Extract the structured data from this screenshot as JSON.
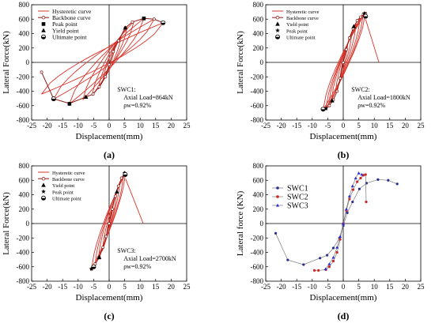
{
  "panels": [
    {
      "id": "a",
      "caption": "(a)",
      "legend": [
        "Hysteretic curve",
        "Backbone curve",
        "Peak point",
        "Yield point",
        "Ultimate point"
      ],
      "annotation": [
        "SWC1:",
        "Axial Load=864kN",
        "ρw=0.92%"
      ]
    },
    {
      "id": "b",
      "caption": "(b)",
      "legend": [
        "Hysteretic curve",
        "Backbone curve",
        "Yield point",
        "Peak point",
        "Ultimate point"
      ],
      "annotation": [
        "SWC2:",
        "Axial Load=1800kN",
        "ρw=0.92%"
      ]
    },
    {
      "id": "c",
      "caption": "(c)",
      "legend": [
        "Hysteretic curve",
        "Backbone curve",
        "Yield point",
        "Peak point",
        "Ultimate point"
      ],
      "annotation": [
        "SWC3:",
        "Axial Load=2700kN",
        "ρw=0.92%"
      ]
    },
    {
      "id": "d",
      "caption": "(d)",
      "legend": [
        "SWC1",
        "SWC2",
        "SWC3"
      ],
      "annotation": []
    }
  ],
  "colors": {
    "hysteretic": "#d9342b",
    "backbone": "#8a1a14",
    "swc1": "#2a2f8f",
    "swc2": "#d02020",
    "swc3": "#2b2bd6",
    "axis": "#000000",
    "panel_d_line": "#7a7a7a"
  },
  "chart_data": [
    {
      "type": "line",
      "panel": "a",
      "xlabel": "Displacement(mm)",
      "ylabel": "Lateral Force(kN)",
      "xlim": [
        -25,
        25
      ],
      "ylim": [
        -800,
        800
      ],
      "xticks": [
        -25,
        -20,
        -15,
        -10,
        -5,
        0,
        5,
        10,
        15,
        20,
        25
      ],
      "yticks": [
        -800,
        -600,
        -400,
        -200,
        0,
        200,
        400,
        600,
        800
      ],
      "series": [
        {
          "name": "Backbone curve",
          "x": [
            -21.8,
            -17.9,
            -12.8,
            -7.5,
            -5.2,
            -3.2,
            -1.2,
            0.0,
            1.3,
            3.0,
            5.2,
            7.5,
            11.2,
            14.5,
            17.4
          ],
          "y": [
            -135,
            -505,
            -570,
            -480,
            -440,
            -340,
            -200,
            -30,
            150,
            300,
            480,
            560,
            610,
            600,
            550
          ]
        }
      ],
      "hysteretic_loops": [
        {
          "xmin": -2.0,
          "xmax": 2.0,
          "fmin": -260,
          "fmax": 250
        },
        {
          "xmin": -3.5,
          "xmax": 3.8,
          "fmin": -370,
          "fmax": 360
        },
        {
          "xmin": -5.5,
          "xmax": 5.8,
          "fmin": -460,
          "fmax": 490
        },
        {
          "xmin": -8.5,
          "xmax": 8.0,
          "fmin": -520,
          "fmax": 570
        },
        {
          "xmin": -12.8,
          "xmax": 11.2,
          "fmin": -575,
          "fmax": 610
        },
        {
          "xmin": -17.9,
          "xmax": 14.5,
          "fmin": -510,
          "fmax": 600
        },
        {
          "xmin": -21.8,
          "xmax": 17.4,
          "fmin": -440,
          "fmax": 550
        }
      ],
      "peak_points": [
        {
          "x": 11.2,
          "y": 610
        },
        {
          "x": -12.8,
          "y": -575
        }
      ],
      "yield_points": [
        {
          "x": 5.2,
          "y": 480
        },
        {
          "x": -7.5,
          "y": -480
        }
      ],
      "ultimate_points": [
        {
          "x": 17.4,
          "y": 550
        },
        {
          "x": -17.9,
          "y": -505
        }
      ]
    },
    {
      "type": "line",
      "panel": "b",
      "xlabel": "Displacement(mm)",
      "ylabel": "Lateral Force(kN)",
      "xlim": [
        -25,
        25
      ],
      "ylim": [
        -800,
        800
      ],
      "xticks": [
        -25,
        -20,
        -15,
        -10,
        -5,
        0,
        5,
        10,
        15,
        20,
        25
      ],
      "yticks": [
        -800,
        -600,
        -400,
        -200,
        0,
        200,
        400,
        600,
        800
      ],
      "series": [
        {
          "name": "Backbone curve",
          "x": [
            -5.6,
            -4.5,
            -3.2,
            -2.0,
            -1.0,
            0.0,
            1.0,
            2.0,
            3.2,
            4.5,
            5.6,
            6.5,
            7.2
          ],
          "y": [
            -640,
            -600,
            -520,
            -400,
            -220,
            0,
            180,
            340,
            470,
            580,
            630,
            670,
            680
          ]
        }
      ],
      "hysteretic_loops": [
        {
          "xmin": -1.2,
          "xmax": 1.4,
          "fmin": -280,
          "fmax": 260
        },
        {
          "xmin": -2.5,
          "xmax": 2.8,
          "fmin": -420,
          "fmax": 420
        },
        {
          "xmin": -3.8,
          "xmax": 4.2,
          "fmin": -530,
          "fmax": 540
        },
        {
          "xmin": -4.8,
          "xmax": 5.5,
          "fmin": -600,
          "fmax": 620
        },
        {
          "xmin": -5.6,
          "xmax": 6.5,
          "fmin": -640,
          "fmax": 670
        },
        {
          "xmin": -6.5,
          "xmax": 7.2,
          "fmin": -655,
          "fmax": 690
        }
      ],
      "failure_branch": {
        "x": [
          7.2,
          11.5
        ],
        "y": [
          600,
          0
        ]
      },
      "yield_points": [
        {
          "x": 3.4,
          "y": 500
        },
        {
          "x": -3.6,
          "y": -530
        }
      ],
      "peak_points": [
        {
          "x": 6.8,
          "y": 680
        },
        {
          "x": -5.6,
          "y": -640
        }
      ],
      "ultimate_points": [
        {
          "x": 7.2,
          "y": 640
        },
        {
          "x": -6.5,
          "y": -650
        }
      ]
    },
    {
      "type": "line",
      "panel": "c",
      "xlabel": "Displacement(mm)",
      "ylabel": "Lateral Force(kN)",
      "xlim": [
        -25,
        25
      ],
      "ylim": [
        -800,
        800
      ],
      "xticks": [
        -25,
        -20,
        -15,
        -10,
        -5,
        0,
        5,
        10,
        15,
        20,
        25
      ],
      "yticks": [
        -800,
        -600,
        -400,
        -200,
        0,
        200,
        400,
        600,
        800
      ],
      "series": [
        {
          "name": "Backbone curve",
          "x": [
            -5.7,
            -4.5,
            -3.2,
            -2.0,
            -1.0,
            0.0,
            1.0,
            2.0,
            3.0,
            4.0,
            5.0
          ],
          "y": [
            -630,
            -560,
            -470,
            -330,
            -180,
            0,
            200,
            380,
            520,
            630,
            700
          ]
        }
      ],
      "hysteretic_loops": [
        {
          "xmin": -1.0,
          "xmax": 1.2,
          "fmin": -220,
          "fmax": 240
        },
        {
          "xmin": -2.2,
          "xmax": 2.4,
          "fmin": -380,
          "fmax": 430
        },
        {
          "xmin": -3.5,
          "xmax": 3.5,
          "fmin": -500,
          "fmax": 580
        },
        {
          "xmin": -4.6,
          "xmax": 4.6,
          "fmin": -580,
          "fmax": 660
        },
        {
          "xmin": -5.7,
          "xmax": 5.3,
          "fmin": -640,
          "fmax": 700
        }
      ],
      "failure_branch": {
        "x": [
          5.3,
          11.0
        ],
        "y": [
          620,
          0
        ]
      },
      "yield_points": [
        {
          "x": 2.5,
          "y": 440
        },
        {
          "x": -3.2,
          "y": -470
        }
      ],
      "peak_points": [
        {
          "x": 5.0,
          "y": 700
        },
        {
          "x": -5.7,
          "y": -630
        }
      ],
      "ultimate_points": [
        {
          "x": 5.2,
          "y": 680
        },
        {
          "x": -5.0,
          "y": -600
        }
      ]
    },
    {
      "type": "line",
      "panel": "d",
      "xlabel": "Displacement(mm)",
      "ylabel": "Lateral force (KN)",
      "xlim": [
        -25,
        25
      ],
      "ylim": [
        -800,
        800
      ],
      "xticks": [
        -25,
        -20,
        -15,
        -10,
        -5,
        0,
        5,
        10,
        15,
        20,
        25
      ],
      "yticks": [
        -800,
        -600,
        -400,
        -200,
        0,
        200,
        400,
        600,
        800
      ],
      "series": [
        {
          "name": "SWC1",
          "x": [
            -21.8,
            -17.9,
            -12.8,
            -7.5,
            -5.2,
            -3.2,
            -1.2,
            0.0,
            1.3,
            3.0,
            5.2,
            7.5,
            11.2,
            14.5,
            17.4
          ],
          "y": [
            -135,
            -505,
            -570,
            -480,
            -440,
            -340,
            -200,
            -30,
            150,
            300,
            480,
            560,
            610,
            600,
            550
          ]
        },
        {
          "name": "SWC2",
          "x": [
            -9.3,
            -8.0,
            -5.6,
            -4.5,
            -3.2,
            -2.0,
            -1.0,
            0.0,
            1.0,
            2.0,
            3.2,
            4.5,
            5.6,
            6.5,
            7.2,
            7.4
          ],
          "y": [
            -650,
            -650,
            -640,
            -600,
            -520,
            -400,
            -220,
            0,
            180,
            340,
            470,
            580,
            630,
            670,
            680,
            300
          ]
        },
        {
          "name": "SWC3",
          "x": [
            -5.7,
            -4.5,
            -3.2,
            -2.0,
            -1.0,
            0.0,
            1.0,
            2.0,
            3.0,
            4.0,
            5.0,
            6.0
          ],
          "y": [
            -630,
            -560,
            -470,
            -330,
            -180,
            0,
            200,
            380,
            520,
            630,
            700,
            680
          ]
        }
      ]
    }
  ]
}
